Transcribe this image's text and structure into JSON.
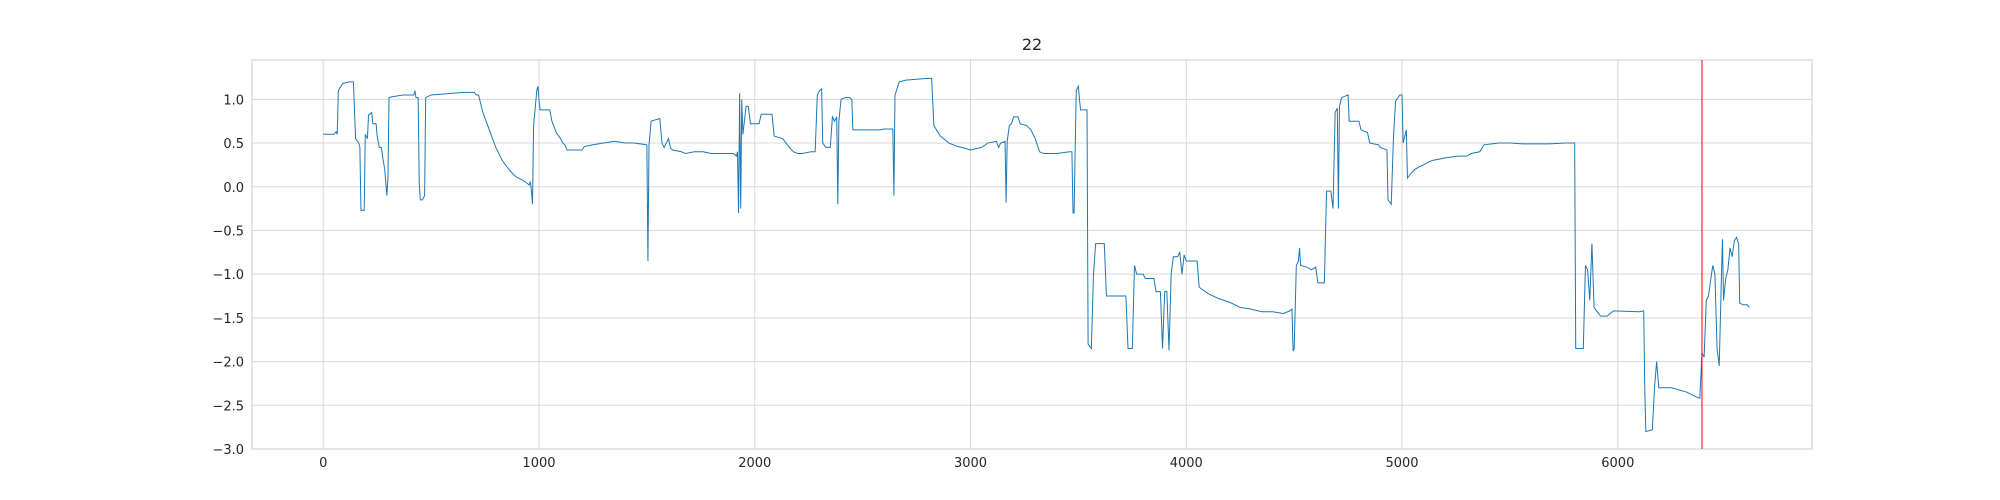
{
  "chart_data": {
    "type": "line",
    "title": "22",
    "xlabel": "",
    "ylabel": "",
    "xlim": [
      -330,
      6900
    ],
    "ylim": [
      -3.0,
      1.45
    ],
    "x_ticks": [
      0,
      1000,
      2000,
      3000,
      4000,
      5000,
      6000
    ],
    "x_tick_labels": [
      "0",
      "1000",
      "2000",
      "3000",
      "4000",
      "5000",
      "6000"
    ],
    "y_ticks": [
      1.0,
      0.5,
      0.0,
      -0.5,
      -1.0,
      -1.5,
      -2.0,
      -2.5,
      -3.0
    ],
    "y_tick_labels": [
      "1.0",
      "0.5",
      "0.0",
      "−0.5",
      "−1.0",
      "−1.5",
      "−2.0",
      "−2.5",
      "−3.0"
    ],
    "grid": true,
    "colors": {
      "series": "#1f77b4",
      "vline": "#ff0000",
      "grid": "#d9d9d9",
      "frame": "#cccccc"
    },
    "vertical_line": {
      "x": 6390
    },
    "series": [
      {
        "points": [
          [
            0,
            0.6
          ],
          [
            50,
            0.6
          ],
          [
            60,
            0.63
          ],
          [
            65,
            0.6
          ],
          [
            70,
            1.1
          ],
          [
            90,
            1.18
          ],
          [
            120,
            1.2
          ],
          [
            140,
            1.2
          ],
          [
            150,
            0.55
          ],
          [
            165,
            0.5
          ],
          [
            170,
            0.45
          ],
          [
            175,
            -0.27
          ],
          [
            190,
            -0.27
          ],
          [
            195,
            0.6
          ],
          [
            205,
            0.55
          ],
          [
            210,
            0.82
          ],
          [
            225,
            0.85
          ],
          [
            230,
            0.72
          ],
          [
            245,
            0.72
          ],
          [
            250,
            0.58
          ],
          [
            260,
            0.45
          ],
          [
            270,
            0.45
          ],
          [
            275,
            0.35
          ],
          [
            285,
            0.2
          ],
          [
            290,
            0.05
          ],
          [
            295,
            -0.1
          ],
          [
            300,
            0.1
          ],
          [
            305,
            1.02
          ],
          [
            320,
            1.03
          ],
          [
            370,
            1.05
          ],
          [
            420,
            1.05
          ],
          [
            425,
            1.1
          ],
          [
            430,
            1.02
          ],
          [
            440,
            1.02
          ],
          [
            445,
            0.05
          ],
          [
            450,
            -0.15
          ],
          [
            460,
            -0.15
          ],
          [
            470,
            -0.1
          ],
          [
            475,
            1.02
          ],
          [
            500,
            1.05
          ],
          [
            600,
            1.07
          ],
          [
            650,
            1.08
          ],
          [
            700,
            1.08
          ],
          [
            710,
            1.05
          ],
          [
            720,
            1.05
          ],
          [
            740,
            0.85
          ],
          [
            770,
            0.65
          ],
          [
            800,
            0.45
          ],
          [
            830,
            0.3
          ],
          [
            860,
            0.2
          ],
          [
            890,
            0.12
          ],
          [
            920,
            0.08
          ],
          [
            940,
            0.05
          ],
          [
            955,
            0.02
          ],
          [
            960,
            0.06
          ],
          [
            965,
            -0.05
          ],
          [
            970,
            -0.2
          ],
          [
            975,
            0.7
          ],
          [
            990,
            1.1
          ],
          [
            995,
            1.15
          ],
          [
            1000,
            1.0
          ],
          [
            1005,
            0.88
          ],
          [
            1050,
            0.88
          ],
          [
            1060,
            0.75
          ],
          [
            1080,
            0.62
          ],
          [
            1100,
            0.55
          ],
          [
            1110,
            0.5
          ],
          [
            1120,
            0.48
          ],
          [
            1130,
            0.42
          ],
          [
            1200,
            0.42
          ],
          [
            1210,
            0.46
          ],
          [
            1250,
            0.48
          ],
          [
            1300,
            0.5
          ],
          [
            1350,
            0.52
          ],
          [
            1400,
            0.5
          ],
          [
            1440,
            0.5
          ],
          [
            1500,
            0.48
          ],
          [
            1505,
            -0.85
          ],
          [
            1510,
            0.48
          ],
          [
            1520,
            0.75
          ],
          [
            1560,
            0.78
          ],
          [
            1570,
            0.5
          ],
          [
            1580,
            0.45
          ],
          [
            1600,
            0.55
          ],
          [
            1610,
            0.44
          ],
          [
            1620,
            0.42
          ],
          [
            1660,
            0.4
          ],
          [
            1680,
            0.38
          ],
          [
            1720,
            0.4
          ],
          [
            1760,
            0.4
          ],
          [
            1800,
            0.38
          ],
          [
            1880,
            0.38
          ],
          [
            1900,
            0.38
          ],
          [
            1915,
            0.35
          ],
          [
            1920,
            0.4
          ],
          [
            1925,
            -0.3
          ],
          [
            1930,
            1.07
          ],
          [
            1935,
            -0.25
          ],
          [
            1940,
            1.0
          ],
          [
            1945,
            0.6
          ],
          [
            1960,
            0.92
          ],
          [
            1970,
            0.92
          ],
          [
            1980,
            0.72
          ],
          [
            2000,
            0.72
          ],
          [
            2020,
            0.72
          ],
          [
            2030,
            0.83
          ],
          [
            2080,
            0.83
          ],
          [
            2090,
            0.58
          ],
          [
            2130,
            0.55
          ],
          [
            2160,
            0.45
          ],
          [
            2180,
            0.4
          ],
          [
            2200,
            0.38
          ],
          [
            2220,
            0.38
          ],
          [
            2260,
            0.4
          ],
          [
            2280,
            0.4
          ],
          [
            2290,
            1.05
          ],
          [
            2300,
            1.1
          ],
          [
            2310,
            1.12
          ],
          [
            2315,
            0.5
          ],
          [
            2330,
            0.45
          ],
          [
            2350,
            0.45
          ],
          [
            2360,
            0.8
          ],
          [
            2370,
            0.75
          ],
          [
            2380,
            0.8
          ],
          [
            2385,
            -0.2
          ],
          [
            2390,
            0.75
          ],
          [
            2400,
            1.0
          ],
          [
            2420,
            1.02
          ],
          [
            2440,
            1.02
          ],
          [
            2450,
            1.0
          ],
          [
            2455,
            0.65
          ],
          [
            2500,
            0.65
          ],
          [
            2580,
            0.65
          ],
          [
            2600,
            0.66
          ],
          [
            2640,
            0.66
          ],
          [
            2645,
            -0.1
          ],
          [
            2650,
            1.05
          ],
          [
            2670,
            1.2
          ],
          [
            2700,
            1.22
          ],
          [
            2800,
            1.24
          ],
          [
            2820,
            1.24
          ],
          [
            2830,
            0.7
          ],
          [
            2860,
            0.58
          ],
          [
            2900,
            0.5
          ],
          [
            2940,
            0.46
          ],
          [
            2960,
            0.45
          ],
          [
            3000,
            0.42
          ],
          [
            3050,
            0.45
          ],
          [
            3070,
            0.48
          ],
          [
            3080,
            0.5
          ],
          [
            3120,
            0.52
          ],
          [
            3130,
            0.45
          ],
          [
            3140,
            0.5
          ],
          [
            3160,
            0.52
          ],
          [
            3165,
            -0.18
          ],
          [
            3170,
            0.52
          ],
          [
            3180,
            0.7
          ],
          [
            3190,
            0.72
          ],
          [
            3200,
            0.8
          ],
          [
            3220,
            0.8
          ],
          [
            3230,
            0.72
          ],
          [
            3260,
            0.7
          ],
          [
            3280,
            0.65
          ],
          [
            3300,
            0.55
          ],
          [
            3320,
            0.4
          ],
          [
            3340,
            0.38
          ],
          [
            3400,
            0.38
          ],
          [
            3460,
            0.4
          ],
          [
            3470,
            0.4
          ],
          [
            3475,
            -0.3
          ],
          [
            3480,
            -0.3
          ],
          [
            3490,
            1.1
          ],
          [
            3500,
            1.15
          ],
          [
            3505,
            1.0
          ],
          [
            3510,
            0.88
          ],
          [
            3540,
            0.88
          ],
          [
            3545,
            -1.8
          ],
          [
            3560,
            -1.85
          ],
          [
            3570,
            -1.0
          ],
          [
            3580,
            -0.65
          ],
          [
            3620,
            -0.65
          ],
          [
            3630,
            -1.25
          ],
          [
            3720,
            -1.25
          ],
          [
            3730,
            -1.85
          ],
          [
            3750,
            -1.85
          ],
          [
            3760,
            -0.9
          ],
          [
            3770,
            -1.0
          ],
          [
            3800,
            -1.0
          ],
          [
            3810,
            -1.05
          ],
          [
            3850,
            -1.05
          ],
          [
            3860,
            -1.2
          ],
          [
            3880,
            -1.2
          ],
          [
            3890,
            -1.85
          ],
          [
            3900,
            -1.2
          ],
          [
            3910,
            -1.2
          ],
          [
            3920,
            -1.87
          ],
          [
            3930,
            -1.0
          ],
          [
            3940,
            -0.8
          ],
          [
            3960,
            -0.8
          ],
          [
            3970,
            -0.75
          ],
          [
            3980,
            -1.0
          ],
          [
            3990,
            -0.78
          ],
          [
            4000,
            -0.85
          ],
          [
            4050,
            -0.85
          ],
          [
            4060,
            -1.15
          ],
          [
            4100,
            -1.22
          ],
          [
            4150,
            -1.28
          ],
          [
            4200,
            -1.32
          ],
          [
            4250,
            -1.38
          ],
          [
            4300,
            -1.4
          ],
          [
            4350,
            -1.43
          ],
          [
            4400,
            -1.43
          ],
          [
            4450,
            -1.45
          ],
          [
            4480,
            -1.42
          ],
          [
            4490,
            -1.4
          ],
          [
            4495,
            -1.88
          ],
          [
            4500,
            -1.85
          ],
          [
            4510,
            -0.9
          ],
          [
            4520,
            -0.85
          ],
          [
            4525,
            -0.7
          ],
          [
            4530,
            -0.9
          ],
          [
            4560,
            -0.92
          ],
          [
            4580,
            -0.95
          ],
          [
            4600,
            -0.92
          ],
          [
            4610,
            -1.1
          ],
          [
            4640,
            -1.1
          ],
          [
            4650,
            -0.05
          ],
          [
            4670,
            -0.05
          ],
          [
            4680,
            -0.25
          ],
          [
            4690,
            0.85
          ],
          [
            4700,
            0.9
          ],
          [
            4705,
            -0.25
          ],
          [
            4710,
            0.92
          ],
          [
            4720,
            1.02
          ],
          [
            4750,
            1.05
          ],
          [
            4755,
            0.75
          ],
          [
            4800,
            0.75
          ],
          [
            4810,
            0.65
          ],
          [
            4840,
            0.62
          ],
          [
            4850,
            0.5
          ],
          [
            4890,
            0.48
          ],
          [
            4900,
            0.45
          ],
          [
            4930,
            0.42
          ],
          [
            4935,
            -0.15
          ],
          [
            4950,
            -0.2
          ],
          [
            4960,
            0.55
          ],
          [
            4970,
            0.98
          ],
          [
            4990,
            1.05
          ],
          [
            5000,
            1.05
          ],
          [
            5005,
            0.5
          ],
          [
            5020,
            0.65
          ],
          [
            5025,
            0.1
          ],
          [
            5040,
            0.15
          ],
          [
            5060,
            0.2
          ],
          [
            5080,
            0.23
          ],
          [
            5100,
            0.25
          ],
          [
            5120,
            0.28
          ],
          [
            5140,
            0.3
          ],
          [
            5200,
            0.33
          ],
          [
            5260,
            0.35
          ],
          [
            5300,
            0.35
          ],
          [
            5320,
            0.38
          ],
          [
            5360,
            0.4
          ],
          [
            5380,
            0.48
          ],
          [
            5450,
            0.5
          ],
          [
            5500,
            0.5
          ],
          [
            5560,
            0.49
          ],
          [
            5640,
            0.49
          ],
          [
            5680,
            0.49
          ],
          [
            5760,
            0.5
          ],
          [
            5800,
            0.5
          ],
          [
            5805,
            -1.85
          ],
          [
            5830,
            -1.85
          ],
          [
            5840,
            -1.85
          ],
          [
            5850,
            -0.9
          ],
          [
            5860,
            -0.95
          ],
          [
            5870,
            -1.3
          ],
          [
            5880,
            -0.65
          ],
          [
            5890,
            -1.38
          ],
          [
            5920,
            -1.48
          ],
          [
            5950,
            -1.48
          ],
          [
            5980,
            -1.42
          ],
          [
            6100,
            -1.43
          ],
          [
            6120,
            -1.42
          ],
          [
            6125,
            -2.32
          ],
          [
            6130,
            -2.8
          ],
          [
            6160,
            -2.78
          ],
          [
            6170,
            -2.3
          ],
          [
            6180,
            -2.0
          ],
          [
            6190,
            -2.3
          ],
          [
            6250,
            -2.3
          ],
          [
            6320,
            -2.35
          ],
          [
            6360,
            -2.4
          ],
          [
            6380,
            -2.42
          ],
          [
            6390,
            -1.9
          ],
          [
            6400,
            -1.95
          ],
          [
            6410,
            -1.3
          ],
          [
            6420,
            -1.25
          ],
          [
            6440,
            -0.9
          ],
          [
            6450,
            -1.0
          ],
          [
            6460,
            -1.85
          ],
          [
            6470,
            -2.05
          ],
          [
            6480,
            -1.05
          ],
          [
            6485,
            -0.6
          ],
          [
            6490,
            -1.3
          ],
          [
            6500,
            -1.05
          ],
          [
            6510,
            -0.95
          ],
          [
            6520,
            -0.7
          ],
          [
            6530,
            -0.8
          ],
          [
            6540,
            -0.62
          ],
          [
            6550,
            -0.58
          ],
          [
            6560,
            -0.65
          ],
          [
            6565,
            -1.33
          ],
          [
            6580,
            -1.35
          ],
          [
            6600,
            -1.35
          ],
          [
            6610,
            -1.38
          ]
        ]
      }
    ]
  }
}
